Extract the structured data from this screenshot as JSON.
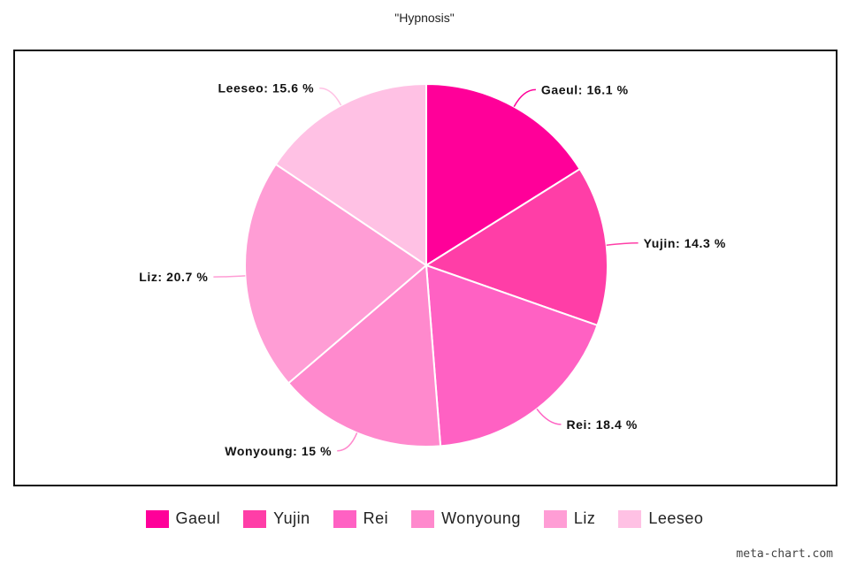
{
  "chart_data": {
    "type": "pie",
    "title": "\"Hypnosis\"",
    "unit": "%",
    "slices": [
      {
        "name": "Gaeul",
        "value": 16.1,
        "label": "Gaeul: 16.1 %",
        "color": "#ff0099"
      },
      {
        "name": "Yujin",
        "value": 14.3,
        "label": "Yujin: 14.3 %",
        "color": "#ff3ea7"
      },
      {
        "name": "Rei",
        "value": 18.4,
        "label": "Rei: 18.4 %",
        "color": "#ff61c3"
      },
      {
        "name": "Wonyoung",
        "value": 15,
        "label": "Wonyoung: 15 %",
        "color": "#ff89cd"
      },
      {
        "name": "Liz",
        "value": 20.7,
        "label": "Liz: 20.7 %",
        "color": "#ff9dd5"
      },
      {
        "name": "Leeseo",
        "value": 15.6,
        "label": "Leeseo: 15.6 %",
        "color": "#ffc1e4"
      }
    ],
    "legend_position": "bottom"
  },
  "watermark": "meta-chart.com"
}
